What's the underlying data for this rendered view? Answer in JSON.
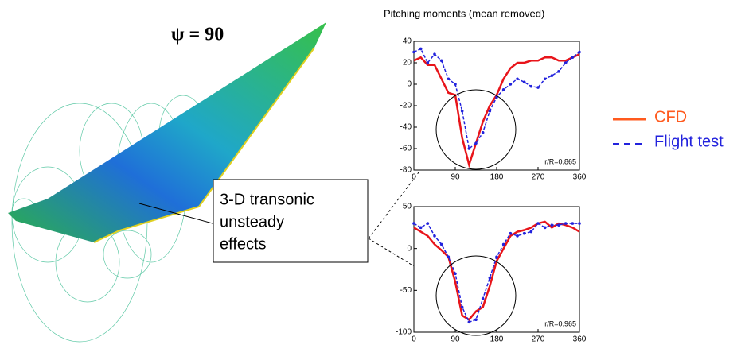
{
  "figure": {
    "label": "ψ = 90",
    "callout": [
      "3-D transonic",
      "unsteady",
      "effects"
    ]
  },
  "chart_data": [
    {
      "type": "line",
      "title": "Pitching moments (mean removed)",
      "annotation": "r/R=0.865",
      "x": [
        0,
        15,
        30,
        45,
        60,
        75,
        90,
        105,
        120,
        135,
        150,
        165,
        180,
        195,
        210,
        225,
        240,
        255,
        270,
        285,
        300,
        315,
        330,
        345,
        360
      ],
      "series": [
        {
          "name": "CFD",
          "color": "#e8141a",
          "values": [
            22,
            25,
            18,
            18,
            5,
            -8,
            -10,
            -50,
            -75,
            -55,
            -35,
            -20,
            -10,
            5,
            15,
            20,
            20,
            22,
            22,
            25,
            25,
            22,
            22,
            25,
            28
          ]
        },
        {
          "name": "Flight test",
          "color": "#2222dd",
          "values": [
            30,
            33,
            20,
            28,
            22,
            5,
            0,
            -25,
            -60,
            -55,
            -45,
            -25,
            -12,
            -5,
            0,
            5,
            2,
            -2,
            -3,
            5,
            8,
            12,
            20,
            25,
            30
          ]
        }
      ],
      "xlim": [
        0,
        360
      ],
      "xticks": [
        0,
        90,
        180,
        270,
        360
      ],
      "ylim": [
        -80,
        40
      ],
      "yticks": [
        -80,
        -60,
        -40,
        -20,
        0,
        20,
        40
      ]
    },
    {
      "type": "line",
      "annotation": "r/R=0.965",
      "x": [
        0,
        15,
        30,
        45,
        60,
        75,
        90,
        105,
        120,
        135,
        150,
        165,
        180,
        195,
        210,
        225,
        240,
        255,
        270,
        285,
        300,
        315,
        330,
        345,
        360
      ],
      "series": [
        {
          "name": "CFD",
          "color": "#e8141a",
          "values": [
            25,
            20,
            15,
            5,
            -2,
            -10,
            -40,
            -80,
            -85,
            -75,
            -70,
            -45,
            -15,
            0,
            15,
            20,
            22,
            25,
            30,
            32,
            25,
            30,
            28,
            25,
            20
          ]
        },
        {
          "name": "Flight test",
          "color": "#2222dd",
          "values": [
            30,
            25,
            30,
            15,
            5,
            -10,
            -30,
            -70,
            -88,
            -85,
            -60,
            -35,
            -10,
            5,
            18,
            15,
            18,
            20,
            30,
            25,
            28,
            28,
            30,
            30,
            30
          ]
        }
      ],
      "xlim": [
        0,
        360
      ],
      "xticks": [
        0,
        90,
        180,
        270,
        360
      ],
      "ylim": [
        -100,
        50
      ],
      "yticks": [
        -100,
        -50,
        0,
        50
      ]
    }
  ]
}
